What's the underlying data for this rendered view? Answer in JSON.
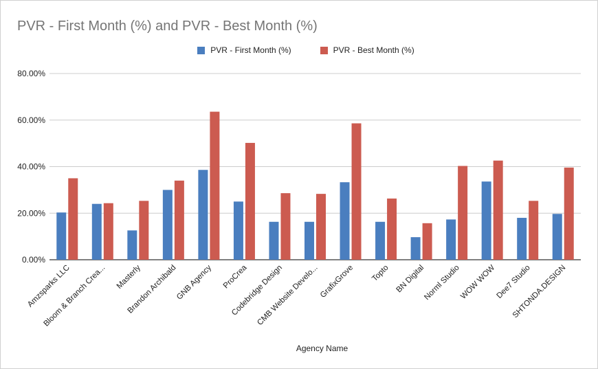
{
  "chart_data": {
    "type": "bar",
    "title": "PVR - First Month (%) and PVR - Best Month (%)",
    "xlabel": "Agency Name",
    "ylabel": "",
    "ylim": [
      0,
      80
    ],
    "y_ticks": [
      "0.00%",
      "20.00%",
      "40.00%",
      "60.00%",
      "80.00%"
    ],
    "y_tick_values": [
      0,
      20,
      40,
      60,
      80
    ],
    "grid": true,
    "legend_position": "top",
    "categories": [
      "Amzsparks LLC",
      "Bloom & Branch Crea...",
      "Masterly",
      "Brandon Archibald",
      "GNB Agency",
      "ProCrea",
      "Codebridge Design",
      "CMB Website Develo...",
      "GrafixGrove",
      "Topto",
      "BN Digital",
      "Norml Studio",
      "WOW WOW",
      "Dee7 Studio",
      "SHTONDA.DESIGN"
    ],
    "series": [
      {
        "name": "PVR - First Month (%)",
        "color": "#4a7ebf",
        "values": [
          20.3,
          24.0,
          12.6,
          30.0,
          38.6,
          25.0,
          16.3,
          16.3,
          33.3,
          16.3,
          9.7,
          17.3,
          33.6,
          18.0,
          19.7
        ]
      },
      {
        "name": "PVR - Best Month (%)",
        "color": "#cc5b50",
        "values": [
          35.0,
          24.3,
          25.3,
          34.0,
          63.6,
          50.2,
          28.6,
          28.3,
          58.6,
          26.3,
          15.7,
          40.3,
          42.6,
          25.3,
          39.6
        ]
      }
    ]
  }
}
